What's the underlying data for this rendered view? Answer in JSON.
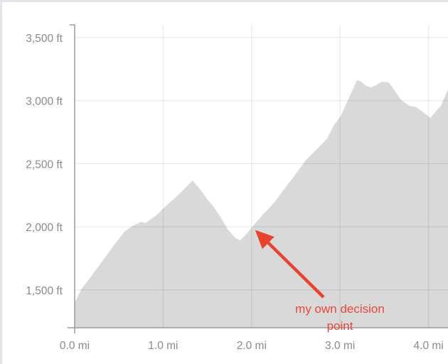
{
  "chart_data": {
    "type": "area",
    "title": "",
    "xlabel": "",
    "ylabel": "",
    "xlim": [
      0,
      4.22
    ],
    "ylim": [
      1200,
      3600
    ],
    "grid": true,
    "x_ticks": [
      0,
      1,
      2,
      3,
      4
    ],
    "x_tick_labels": [
      "0.0 mi",
      "1.0 mi",
      "2.0 mi",
      "3.0 mi",
      "4.0 mi"
    ],
    "y_ticks": [
      1500,
      2000,
      2500,
      3000,
      3500
    ],
    "y_tick_labels": [
      "1,500 ft",
      "2,000 ft",
      "2,500 ft",
      "3,000 ft",
      "3,500 ft"
    ],
    "colors": {
      "fill": "#d9d9d9",
      "axis": "#9a9a9a",
      "grid": "#ebebeb",
      "annotation": "#e8432f"
    },
    "series": [
      {
        "x": [
          0,
          0.08,
          0.2,
          0.32,
          0.44,
          0.56,
          0.64,
          0.75,
          0.8,
          0.92,
          1.04,
          1.16,
          1.26,
          1.33,
          1.41,
          1.49,
          1.57,
          1.65,
          1.73,
          1.81,
          1.87,
          1.93,
          2.01,
          2.13,
          2.25,
          2.37,
          2.49,
          2.61,
          2.73,
          2.85,
          2.93,
          3.01,
          3.09,
          3.19,
          3.24,
          3.29,
          3.35,
          3.41,
          3.47,
          3.55,
          3.61,
          3.69,
          3.78,
          3.86,
          3.94,
          4.02,
          4.07,
          4.14,
          4.22
        ],
        "y": [
          1400,
          1510,
          1620,
          1735,
          1850,
          1960,
          2000,
          2040,
          2030,
          2090,
          2170,
          2245,
          2315,
          2367,
          2305,
          2225,
          2160,
          2075,
          1980,
          1915,
          1893,
          1933,
          2000,
          2100,
          2187,
          2300,
          2410,
          2525,
          2610,
          2695,
          2805,
          2880,
          3005,
          3162,
          3150,
          3117,
          3105,
          3122,
          3150,
          3145,
          3088,
          3005,
          2960,
          2948,
          2908,
          2863,
          2903,
          2960,
          3088
        ]
      }
    ],
    "annotations": [
      {
        "text_lines": [
          "my own decision",
          "point"
        ],
        "arrow_to": {
          "x": 2.04,
          "y": 1975
        }
      }
    ]
  }
}
